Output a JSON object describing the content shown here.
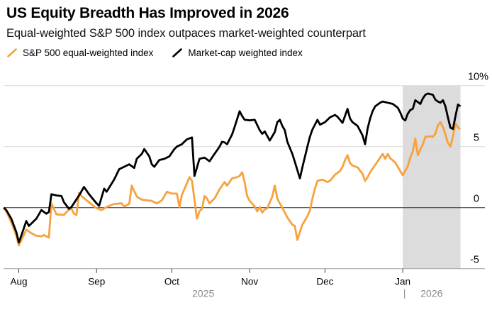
{
  "header": {
    "title": "US Equity Breadth Has Improved in 2026",
    "subtitle": "Equal-weighted S&P 500 index outpaces market-weighted counterpart"
  },
  "chart_data": {
    "type": "line",
    "title": "US Equity Breadth Has Improved in 2026",
    "subtitle": "Equal-weighted S&P 500 index outpaces market-weighted counterpart",
    "unit": "%",
    "grid": true,
    "legend_position": "top-left",
    "x_axis": {
      "range": [
        "2025-07-26",
        "2026-01-24"
      ],
      "ticks": [
        {
          "date": "2025-08-01",
          "label": "Aug"
        },
        {
          "date": "2025-09-01",
          "label": "Sep"
        },
        {
          "date": "2025-10-01",
          "label": "Oct"
        },
        {
          "date": "2025-11-01",
          "label": "Nov"
        },
        {
          "date": "2025-12-01",
          "label": "Dec"
        },
        {
          "date": "2026-01-01",
          "label": "Jan"
        }
      ],
      "year_labels": [
        {
          "label": "2025",
          "period_start": "2025-07-26",
          "period_end": "2026-01-01"
        },
        {
          "label": "2026",
          "period_start": "2026-01-01",
          "period_end": "2026-01-24",
          "divider_before": true
        }
      ]
    },
    "y_axis": {
      "range": [
        -5,
        10
      ],
      "unit": "%",
      "ticks": [
        {
          "value": 10,
          "label": "10%"
        },
        {
          "value": 5,
          "label": "5"
        },
        {
          "value": 0,
          "label": "0"
        },
        {
          "value": -5,
          "label": "-5"
        }
      ]
    },
    "highlight_band": {
      "start": "2026-01-01",
      "end": "2026-01-24",
      "color": "#dcdcdc"
    },
    "zero_line_color": "#2e2e2e",
    "gridline_color": "#d9d9d9",
    "axis_line_color": "#a3a3a3",
    "year_label_color": "#8a8a8a",
    "series": [
      {
        "name": "S&P 500 equal-weighted index",
        "color": "#f7a23c",
        "points": [
          [
            "2025-07-26",
            0
          ],
          [
            "2025-07-27",
            -0.3
          ],
          [
            "2025-07-29",
            -1.2
          ],
          [
            "2025-07-31",
            -2.3
          ],
          [
            "2025-08-01",
            -3.1
          ],
          [
            "2025-08-02",
            -2.7
          ],
          [
            "2025-08-04",
            -1.8
          ],
          [
            "2025-08-06",
            -2.1
          ],
          [
            "2025-08-08",
            -2.3
          ],
          [
            "2025-08-10",
            -2.35
          ],
          [
            "2025-08-11",
            -2.25
          ],
          [
            "2025-08-13",
            -2.45
          ],
          [
            "2025-08-14",
            0.35
          ],
          [
            "2025-08-16",
            -0.55
          ],
          [
            "2025-08-19",
            -0.6
          ],
          [
            "2025-08-21",
            -0.15
          ],
          [
            "2025-08-22",
            -0.1
          ],
          [
            "2025-08-23",
            -0.5
          ],
          [
            "2025-08-24",
            -0.6
          ],
          [
            "2025-08-25",
            1.2
          ],
          [
            "2025-08-26",
            0.95
          ],
          [
            "2025-08-28",
            0.6
          ],
          [
            "2025-09-01",
            -0.05
          ],
          [
            "2025-09-03",
            -0.2
          ],
          [
            "2025-09-05",
            0.05
          ],
          [
            "2025-09-08",
            0.3
          ],
          [
            "2025-09-11",
            0.35
          ],
          [
            "2025-09-12",
            0.1
          ],
          [
            "2025-09-14",
            0.3
          ],
          [
            "2025-09-15",
            1.8
          ],
          [
            "2025-09-17",
            0.9
          ],
          [
            "2025-09-19",
            0.65
          ],
          [
            "2025-09-23",
            0.55
          ],
          [
            "2025-09-25",
            0.35
          ],
          [
            "2025-09-27",
            0.6
          ],
          [
            "2025-09-29",
            1.3
          ],
          [
            "2025-10-01",
            1.15
          ],
          [
            "2025-10-03",
            1.15
          ],
          [
            "2025-10-04",
            0.05
          ],
          [
            "2025-10-05",
            1.05
          ],
          [
            "2025-10-07",
            2.0
          ],
          [
            "2025-10-08",
            2.5
          ],
          [
            "2025-10-09",
            2.2
          ],
          [
            "2025-10-11",
            -0.9
          ],
          [
            "2025-10-12",
            -0.3
          ],
          [
            "2025-10-13",
            -0.1
          ],
          [
            "2025-10-14",
            0.95
          ],
          [
            "2025-10-15",
            0.75
          ],
          [
            "2025-10-16",
            0.35
          ],
          [
            "2025-10-18",
            0.75
          ],
          [
            "2025-10-20",
            1.5
          ],
          [
            "2025-10-22",
            2.1
          ],
          [
            "2025-10-23",
            1.8
          ],
          [
            "2025-10-25",
            2.4
          ],
          [
            "2025-10-27",
            2.5
          ],
          [
            "2025-10-28",
            2.6
          ],
          [
            "2025-10-29",
            2.9
          ],
          [
            "2025-10-30",
            2.1
          ],
          [
            "2025-10-31",
            0.95
          ],
          [
            "2025-11-01",
            0.55
          ],
          [
            "2025-11-03",
            0.1
          ],
          [
            "2025-11-04",
            -0.3
          ],
          [
            "2025-11-05",
            0.05
          ],
          [
            "2025-11-06",
            -0.4
          ],
          [
            "2025-11-07",
            -0.15
          ],
          [
            "2025-11-08",
            -0.05
          ],
          [
            "2025-11-10",
            0.9
          ],
          [
            "2025-11-11",
            1.8
          ],
          [
            "2025-11-12",
            0.75
          ],
          [
            "2025-11-13",
            0.35
          ],
          [
            "2025-11-14",
            0.0
          ],
          [
            "2025-11-15",
            -0.4
          ],
          [
            "2025-11-16",
            -0.8
          ],
          [
            "2025-11-18",
            -1.4
          ],
          [
            "2025-11-19",
            -1.5
          ],
          [
            "2025-11-20",
            -2.65
          ],
          [
            "2025-11-21",
            -2.0
          ],
          [
            "2025-11-22",
            -1.4
          ],
          [
            "2025-11-24",
            -0.7
          ],
          [
            "2025-11-25",
            -0.25
          ],
          [
            "2025-11-26",
            0.75
          ],
          [
            "2025-11-27",
            1.55
          ],
          [
            "2025-11-28",
            2.2
          ],
          [
            "2025-11-30",
            2.3
          ],
          [
            "2025-12-02",
            2.1
          ],
          [
            "2025-12-03",
            2.2
          ],
          [
            "2025-12-05",
            2.7
          ],
          [
            "2025-12-07",
            3.0
          ],
          [
            "2025-12-08",
            3.35
          ],
          [
            "2025-12-09",
            3.9
          ],
          [
            "2025-12-10",
            4.3
          ],
          [
            "2025-12-11",
            3.65
          ],
          [
            "2025-12-12",
            3.45
          ],
          [
            "2025-12-14",
            3.3
          ],
          [
            "2025-12-16",
            2.75
          ],
          [
            "2025-12-17",
            2.2
          ],
          [
            "2025-12-18",
            2.5
          ],
          [
            "2025-12-19",
            2.9
          ],
          [
            "2025-12-21",
            3.5
          ],
          [
            "2025-12-23",
            4.1
          ],
          [
            "2025-12-24",
            4.4
          ],
          [
            "2025-12-25",
            4.0
          ],
          [
            "2025-12-26",
            4.4
          ],
          [
            "2025-12-27",
            4.05
          ],
          [
            "2025-12-29",
            3.7
          ],
          [
            "2025-12-31",
            3.0
          ],
          [
            "2026-01-01",
            2.65
          ],
          [
            "2026-01-03",
            3.4
          ],
          [
            "2026-01-04",
            4.1
          ],
          [
            "2026-01-05",
            4.6
          ],
          [
            "2026-01-06",
            5.65
          ],
          [
            "2026-01-07",
            4.3
          ],
          [
            "2026-01-09",
            5.2
          ],
          [
            "2026-01-10",
            5.8
          ],
          [
            "2026-01-12",
            5.85
          ],
          [
            "2026-01-13",
            5.8
          ],
          [
            "2026-01-14",
            6.05
          ],
          [
            "2026-01-15",
            6.75
          ],
          [
            "2026-01-16",
            7.0
          ],
          [
            "2026-01-17",
            6.6
          ],
          [
            "2026-01-18",
            6.0
          ],
          [
            "2026-01-19",
            5.3
          ],
          [
            "2026-01-20",
            5.0
          ],
          [
            "2026-01-21",
            5.85
          ],
          [
            "2026-01-22",
            6.9
          ],
          [
            "2026-01-23",
            6.55
          ],
          [
            "2026-01-24",
            6.45
          ]
        ]
      },
      {
        "name": "Market-cap weighted index",
        "color": "#000000",
        "points": [
          [
            "2025-07-26",
            0
          ],
          [
            "2025-07-27",
            -0.2
          ],
          [
            "2025-07-29",
            -0.9
          ],
          [
            "2025-07-31",
            -2.0
          ],
          [
            "2025-08-01",
            -2.85
          ],
          [
            "2025-08-02",
            -2.3
          ],
          [
            "2025-08-04",
            -1.1
          ],
          [
            "2025-08-05",
            -1.5
          ],
          [
            "2025-08-08",
            -0.9
          ],
          [
            "2025-08-10",
            -0.2
          ],
          [
            "2025-08-12",
            -0.5
          ],
          [
            "2025-08-13",
            -0.35
          ],
          [
            "2025-08-14",
            1.1
          ],
          [
            "2025-08-16",
            1.0
          ],
          [
            "2025-08-18",
            0.95
          ],
          [
            "2025-08-19",
            0.45
          ],
          [
            "2025-08-21",
            -0.1
          ],
          [
            "2025-08-22",
            0.05
          ],
          [
            "2025-08-25",
            1.0
          ],
          [
            "2025-08-27",
            1.7
          ],
          [
            "2025-08-29",
            1.1
          ],
          [
            "2025-09-01",
            0.35
          ],
          [
            "2025-09-02",
            0.15
          ],
          [
            "2025-09-04",
            1.55
          ],
          [
            "2025-09-05",
            1.3
          ],
          [
            "2025-09-08",
            2.3
          ],
          [
            "2025-09-10",
            3.15
          ],
          [
            "2025-09-13",
            3.45
          ],
          [
            "2025-09-14",
            3.55
          ],
          [
            "2025-09-16",
            3.25
          ],
          [
            "2025-09-17",
            4.0
          ],
          [
            "2025-09-19",
            4.4
          ],
          [
            "2025-09-20",
            4.8
          ],
          [
            "2025-09-22",
            4.2
          ],
          [
            "2025-09-23",
            3.55
          ],
          [
            "2025-09-24",
            3.35
          ],
          [
            "2025-09-26",
            3.9
          ],
          [
            "2025-09-28",
            4.0
          ],
          [
            "2025-09-30",
            4.2
          ],
          [
            "2025-10-01",
            4.5
          ],
          [
            "2025-10-02",
            4.8
          ],
          [
            "2025-10-03",
            5.0
          ],
          [
            "2025-10-05",
            5.2
          ],
          [
            "2025-10-06",
            5.4
          ],
          [
            "2025-10-07",
            5.6
          ],
          [
            "2025-10-09",
            5.75
          ],
          [
            "2025-10-10",
            2.6
          ],
          [
            "2025-10-12",
            4.0
          ],
          [
            "2025-10-14",
            4.1
          ],
          [
            "2025-10-16",
            3.8
          ],
          [
            "2025-10-18",
            4.4
          ],
          [
            "2025-10-20",
            5.0
          ],
          [
            "2025-10-21",
            5.4
          ],
          [
            "2025-10-22",
            5.35
          ],
          [
            "2025-10-23",
            5.2
          ],
          [
            "2025-10-25",
            6.0
          ],
          [
            "2025-10-26",
            6.6
          ],
          [
            "2025-10-28",
            7.9
          ],
          [
            "2025-10-29",
            7.5
          ],
          [
            "2025-10-30",
            7.2
          ],
          [
            "2025-11-01",
            7.15
          ],
          [
            "2025-11-03",
            7.2
          ],
          [
            "2025-11-05",
            6.35
          ],
          [
            "2025-11-06",
            6.05
          ],
          [
            "2025-11-07",
            6.25
          ],
          [
            "2025-11-09",
            5.5
          ],
          [
            "2025-11-11",
            6.2
          ],
          [
            "2025-11-12",
            7.0
          ],
          [
            "2025-11-13",
            7.2
          ],
          [
            "2025-11-14",
            6.7
          ],
          [
            "2025-11-15",
            6.35
          ],
          [
            "2025-11-16",
            5.4
          ],
          [
            "2025-11-17",
            4.9
          ],
          [
            "2025-11-18",
            4.4
          ],
          [
            "2025-11-19",
            3.75
          ],
          [
            "2025-11-21",
            2.4
          ],
          [
            "2025-11-22",
            3.3
          ],
          [
            "2025-11-24",
            5.0
          ],
          [
            "2025-11-25",
            5.8
          ],
          [
            "2025-11-26",
            6.4
          ],
          [
            "2025-11-28",
            7.2
          ],
          [
            "2025-11-29",
            6.8
          ],
          [
            "2025-12-01",
            7.0
          ],
          [
            "2025-12-03",
            7.4
          ],
          [
            "2025-12-05",
            7.6
          ],
          [
            "2025-12-06",
            7.45
          ],
          [
            "2025-12-08",
            6.95
          ],
          [
            "2025-12-10",
            8.1
          ],
          [
            "2025-12-11",
            7.3
          ],
          [
            "2025-12-12",
            7.0
          ],
          [
            "2025-12-14",
            6.7
          ],
          [
            "2025-12-16",
            5.9
          ],
          [
            "2025-12-17",
            5.2
          ],
          [
            "2025-12-18",
            6.5
          ],
          [
            "2025-12-19",
            7.3
          ],
          [
            "2025-12-20",
            7.9
          ],
          [
            "2025-12-21",
            8.3
          ],
          [
            "2025-12-23",
            8.6
          ],
          [
            "2025-12-24",
            8.7
          ],
          [
            "2025-12-26",
            8.6
          ],
          [
            "2025-12-28",
            8.5
          ],
          [
            "2025-12-30",
            8.2
          ],
          [
            "2025-12-31",
            7.8
          ],
          [
            "2026-01-01",
            7.3
          ],
          [
            "2026-01-02",
            7.15
          ],
          [
            "2026-01-03",
            7.7
          ],
          [
            "2026-01-04",
            8.0
          ],
          [
            "2026-01-05",
            8.1
          ],
          [
            "2026-01-06",
            8.8
          ],
          [
            "2026-01-08",
            8.5
          ],
          [
            "2026-01-09",
            8.95
          ],
          [
            "2026-01-10",
            9.25
          ],
          [
            "2026-01-11",
            9.35
          ],
          [
            "2026-01-13",
            9.25
          ],
          [
            "2026-01-14",
            8.85
          ],
          [
            "2026-01-15",
            8.7
          ],
          [
            "2026-01-16",
            8.6
          ],
          [
            "2026-01-17",
            8.8
          ],
          [
            "2026-01-18",
            8.3
          ],
          [
            "2026-01-19",
            7.4
          ],
          [
            "2026-01-20",
            6.55
          ],
          [
            "2026-01-21",
            6.45
          ],
          [
            "2026-01-22",
            7.5
          ],
          [
            "2026-01-23",
            8.45
          ],
          [
            "2026-01-24",
            8.3
          ]
        ]
      }
    ]
  }
}
